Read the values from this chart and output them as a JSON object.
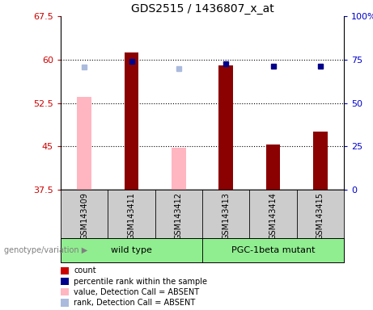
{
  "title": "GDS2515 / 1436807_x_at",
  "samples": [
    "GSM143409",
    "GSM143411",
    "GSM143412",
    "GSM143413",
    "GSM143414",
    "GSM143415"
  ],
  "ylim_left": [
    37.5,
    67.5
  ],
  "ylim_right": [
    0,
    100
  ],
  "yticks_left": [
    37.5,
    45.0,
    52.5,
    60.0,
    67.5
  ],
  "ytick_labels_left": [
    "37.5",
    "45",
    "52.5",
    "60",
    "67.5"
  ],
  "yticks_right": [
    0,
    25,
    50,
    75,
    100
  ],
  "ytick_labels_right": [
    "0",
    "25",
    "50",
    "75",
    "100%"
  ],
  "count_values": [
    null,
    61.2,
    null,
    59.0,
    45.3,
    47.5
  ],
  "count_absent_values": [
    53.5,
    null,
    44.7,
    null,
    null,
    null
  ],
  "percentile_values": [
    null,
    59.7,
    null,
    59.2,
    58.8,
    58.8
  ],
  "percentile_absent_values": [
    58.7,
    null,
    58.5,
    null,
    null,
    null
  ],
  "bar_color_present": "#8B0000",
  "bar_color_absent": "#FFB6C1",
  "marker_color_present": "#00008B",
  "marker_color_absent": "#AABBDD",
  "bg_color": "#FFFFFF",
  "plot_bg_color": "#FFFFFF",
  "label_area_color": "#CCCCCC",
  "group_color": "#90EE90",
  "tick_color_left": "#CC0000",
  "tick_color_right": "#0000CC",
  "legend_items": [
    {
      "label": "count",
      "color": "#CC0000"
    },
    {
      "label": "percentile rank within the sample",
      "color": "#00008B"
    },
    {
      "label": "value, Detection Call = ABSENT",
      "color": "#FFB6C1"
    },
    {
      "label": "rank, Detection Call = ABSENT",
      "color": "#AABBDD"
    }
  ]
}
